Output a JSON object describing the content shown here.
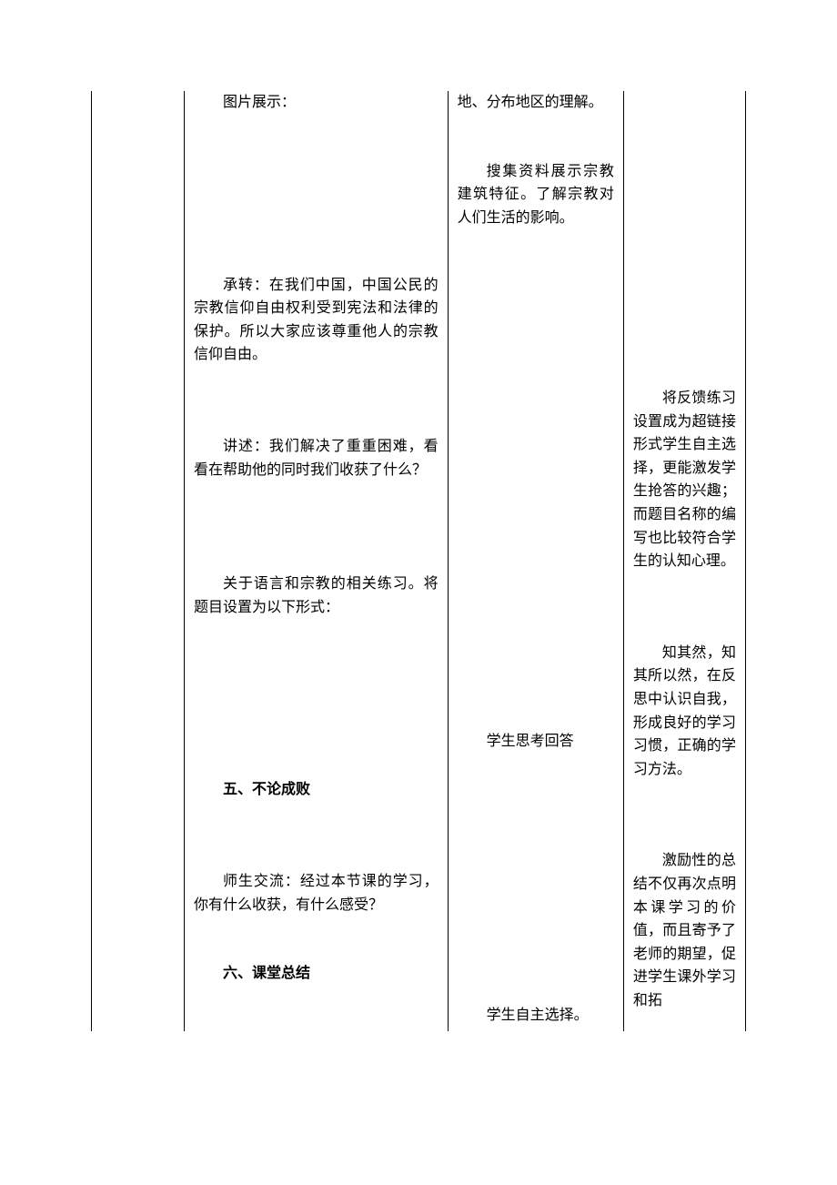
{
  "table": {
    "col1": {},
    "col2": {
      "p1": "图片展示：",
      "p2": "承转：在我们中国，中国公民的宗教信仰自由权利受到宪法和法律的保护。所以大家应该尊重他人的宗教信仰自由。",
      "p3": "讲述：我们解决了重重困难，看看在帮助他的同时我们收获了什么？",
      "p4": "关于语言和宗教的相关练习。将题目设置为以下形式：",
      "p5": "五、不论成败",
      "p6": "师生交流：经过本节课的学习，你有什么收获，有什么感受？",
      "p7": "六、课堂总结"
    },
    "col3": {
      "p1": "地、分布地区的理解。",
      "p2": "搜集资料展示宗教建筑特征。了解宗教对人们生活的影响。",
      "p3": "学生思考回答",
      "p4": "学生自主选择。"
    },
    "col4": {
      "p1": "将反馈练习设置成为超链接形式学生自主选择，更能激发学生抢答的兴趣；而题目名称的编写也比较符合学生的认知心理。",
      "p2": "知其然，知其所以然，在反思中认识自我，形成良好的学习习惯，正确的学习方法。",
      "p3": "激励性的总结不仅再次点明本课学习的价值，而且寄予了老师的期望，促进学生课外学习和拓"
    }
  }
}
